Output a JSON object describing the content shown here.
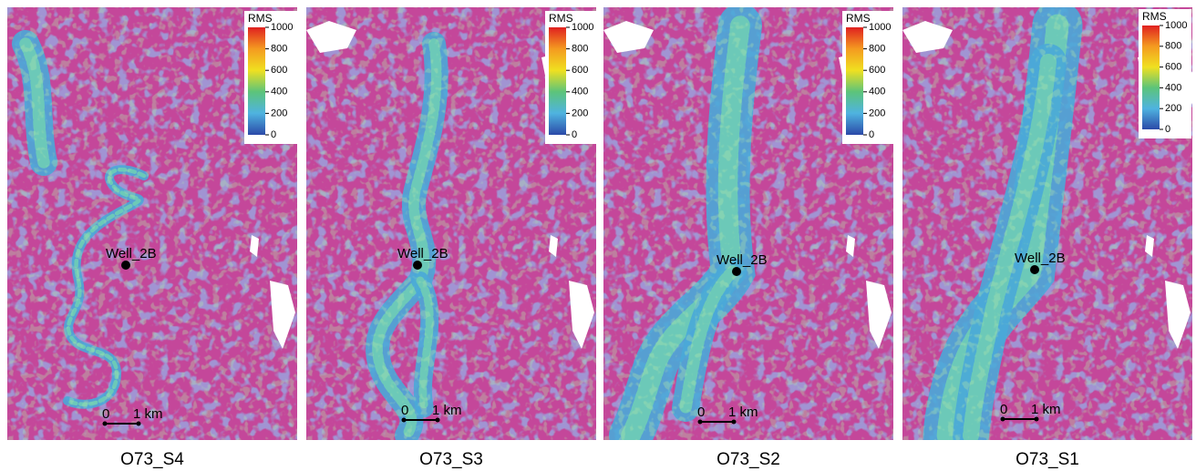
{
  "panels": [
    {
      "caption": "O73_S4",
      "colorbar": {
        "title": "RMS",
        "ticks": [
          0,
          200,
          400,
          600,
          800,
          1000
        ]
      },
      "well": "Well_2B",
      "scale": {
        "start": "0",
        "end": "1 km"
      }
    },
    {
      "caption": "O73_S3",
      "colorbar": {
        "title": "RMS",
        "ticks": [
          0,
          200,
          400,
          600,
          800,
          1000
        ]
      },
      "well": "Well_2B",
      "scale": {
        "start": "0",
        "end": "1 km"
      }
    },
    {
      "caption": "O73_S2",
      "colorbar": {
        "title": "RMS",
        "ticks": [
          0,
          200,
          400,
          600,
          800,
          1000
        ]
      },
      "well": "Well_2B",
      "scale": {
        "start": "0",
        "end": "1 km"
      }
    },
    {
      "caption": "O73_S1",
      "colorbar": {
        "title": "RMS",
        "ticks": [
          0,
          200,
          400,
          600,
          800,
          1000
        ]
      },
      "well": "Well_2B",
      "scale": {
        "start": "0",
        "end": "1 km"
      }
    }
  ]
}
